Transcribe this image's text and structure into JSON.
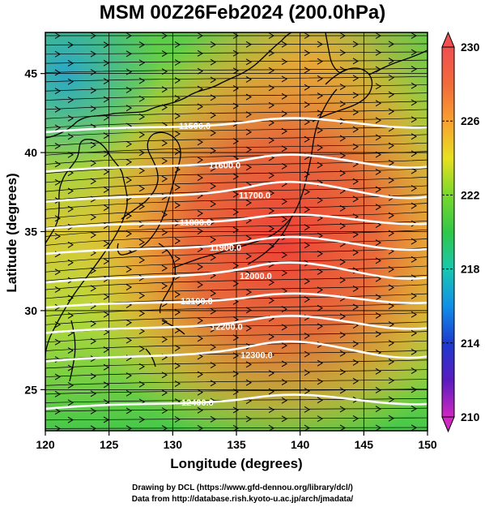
{
  "title": "MSM 00Z26Feb2024 (200.0hPa)",
  "map": {
    "lon_range": [
      120,
      150
    ],
    "lat_range": [
      22.4,
      47.6
    ],
    "xlabel": "Longitude (degrees)",
    "ylabel": "Latitude  (degrees)",
    "xticks": [
      "120",
      "125",
      "130",
      "135",
      "140",
      "145",
      "150"
    ],
    "xtick_values": [
      120,
      125,
      130,
      135,
      140,
      145,
      150
    ],
    "yticks": [
      "25",
      "30",
      "35",
      "40",
      "45"
    ],
    "ytick_values": [
      25,
      30,
      35,
      40,
      45
    ]
  },
  "colorbar": {
    "min": 210,
    "max": 230,
    "labels": [
      "230",
      "226",
      "222",
      "218",
      "214",
      "210"
    ],
    "label_values": [
      230,
      226,
      222,
      218,
      214,
      210
    ]
  },
  "contours": [
    {
      "label": "11500.0",
      "lat": 41.7
    },
    {
      "label": "11600.0",
      "lat": 39.2
    },
    {
      "label": "11700.0",
      "lat": 37.3
    },
    {
      "label": "11800.0",
      "lat": 35.6
    },
    {
      "label": "11900.0",
      "lat": 34.0
    },
    {
      "label": "12000.0",
      "lat": 32.2
    },
    {
      "label": "12100.0",
      "lat": 30.6
    },
    {
      "label": "12200.0",
      "lat": 29.0
    },
    {
      "label": "12300.0",
      "lat": 27.2
    },
    {
      "label": "12400.0",
      "lat": 24.2
    }
  ],
  "footer": {
    "line1": "Drawing by DCL (https://www.gfd-dennou.org/library/dcl/)",
    "line2": "Data from http://database.rish.kyoto-u.ac.jp/arch/jmadata/"
  }
}
